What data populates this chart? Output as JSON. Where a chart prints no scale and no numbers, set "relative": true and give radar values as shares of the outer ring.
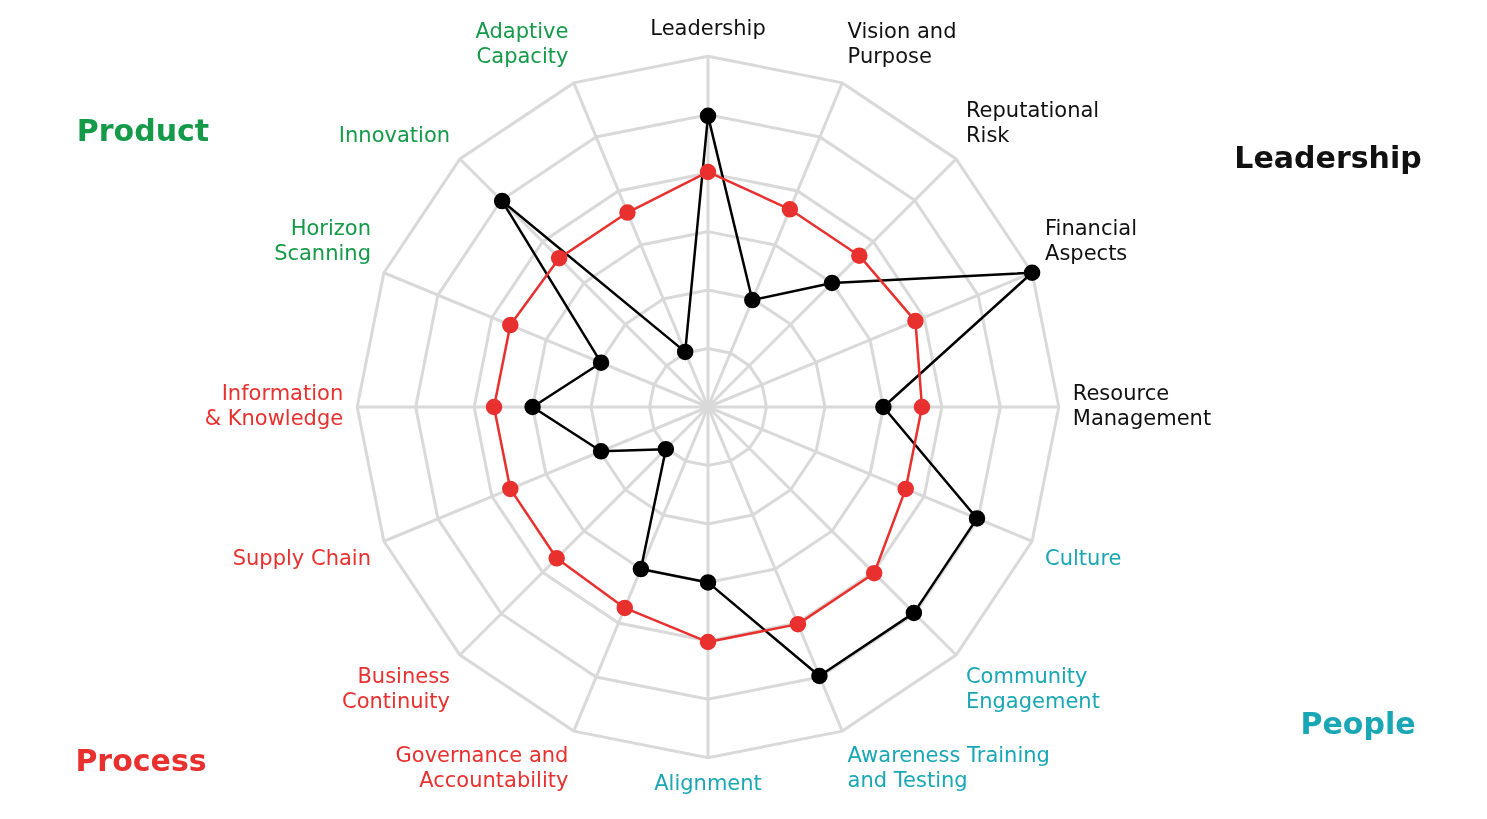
{
  "chart_data": {
    "type": "radar",
    "relative": true,
    "categories": [
      "Leadership",
      "Vision and Purpose",
      "Reputational Risk",
      "Financial Aspects",
      "Resource Management",
      "Culture",
      "Community Engagement",
      "Awareness Training and Testing",
      "Alignment",
      "Governance and Accountability",
      "Business Continuity",
      "Supply Chain",
      "Information & Knowledge",
      "Horizon Scanning",
      "Innovation",
      "Adaptive Capacity"
    ],
    "series": [
      {
        "color": "#e8312f",
        "values": [
          0.67,
          0.61,
          0.61,
          0.64,
          0.61,
          0.61,
          0.67,
          0.67,
          0.67,
          0.62,
          0.61,
          0.61,
          0.61,
          0.61,
          0.6,
          0.6
        ]
      },
      {
        "color": "#000000",
        "values": [
          0.83,
          0.33,
          0.5,
          1,
          0.5,
          0.83,
          0.83,
          0.83,
          0.5,
          0.5,
          0.17,
          0.33,
          0.5,
          0.33,
          0.83,
          0.17
        ]
      }
    ],
    "annotations": [
      "Product",
      "Leadership",
      "People",
      "Process"
    ],
    "grid": true,
    "legend": false,
    "marker": "circle",
    "line_style": "solid"
  }
}
